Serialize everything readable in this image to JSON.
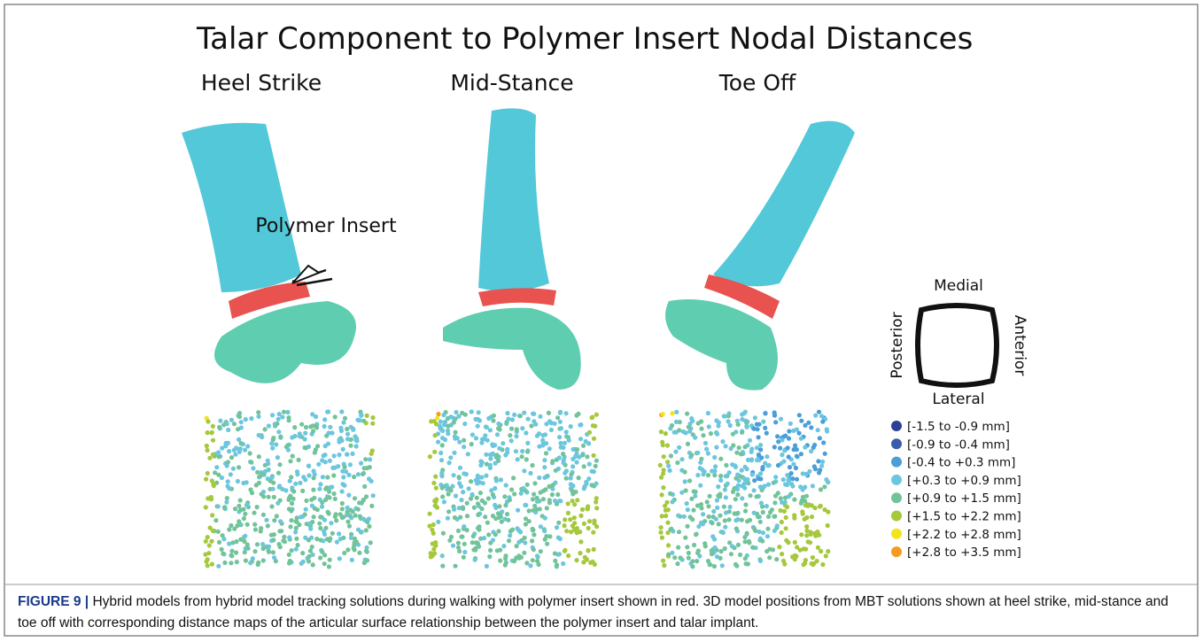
{
  "title": "Talar Component to Polymer Insert Nodal Distances",
  "panels": [
    {
      "label": "Heel Strike"
    },
    {
      "label": "Mid-Stance"
    },
    {
      "label": "Toe Off"
    }
  ],
  "annotation": "Polymer Insert",
  "orientation": {
    "top": "Medial",
    "bottom": "Lateral",
    "left": "Posterior",
    "right": "Anterior"
  },
  "legend": [
    {
      "label": "[-1.5 to -0.9 mm]",
      "color": "#2b3f95"
    },
    {
      "label": "[-0.9 to -0.4 mm]",
      "color": "#3a5cab"
    },
    {
      "label": "[-0.4 to +0.3 mm]",
      "color": "#4a9fd8"
    },
    {
      "label": "[+0.3 to +0.9 mm]",
      "color": "#6cc6de"
    },
    {
      "label": "[+0.9 to +1.5 mm]",
      "color": "#72c39a"
    },
    {
      "label": "[+1.5 to +2.2 mm]",
      "color": "#a5c83d"
    },
    {
      "label": "[+2.2 to +2.8 mm]",
      "color": "#f2e51b"
    },
    {
      "label": "[+2.8 to +3.5 mm]",
      "color": "#f39c1f"
    }
  ],
  "caption": {
    "label": "FIGURE 9 |",
    "text": "Hybrid models from hybrid model tracking solutions during walking with polymer insert shown in red. 3D model positions from MBT solutions shown at heel strike, mid-stance and toe off with corresponding distance maps of the articular surface relationship between the polymer insert and talar implant."
  }
}
